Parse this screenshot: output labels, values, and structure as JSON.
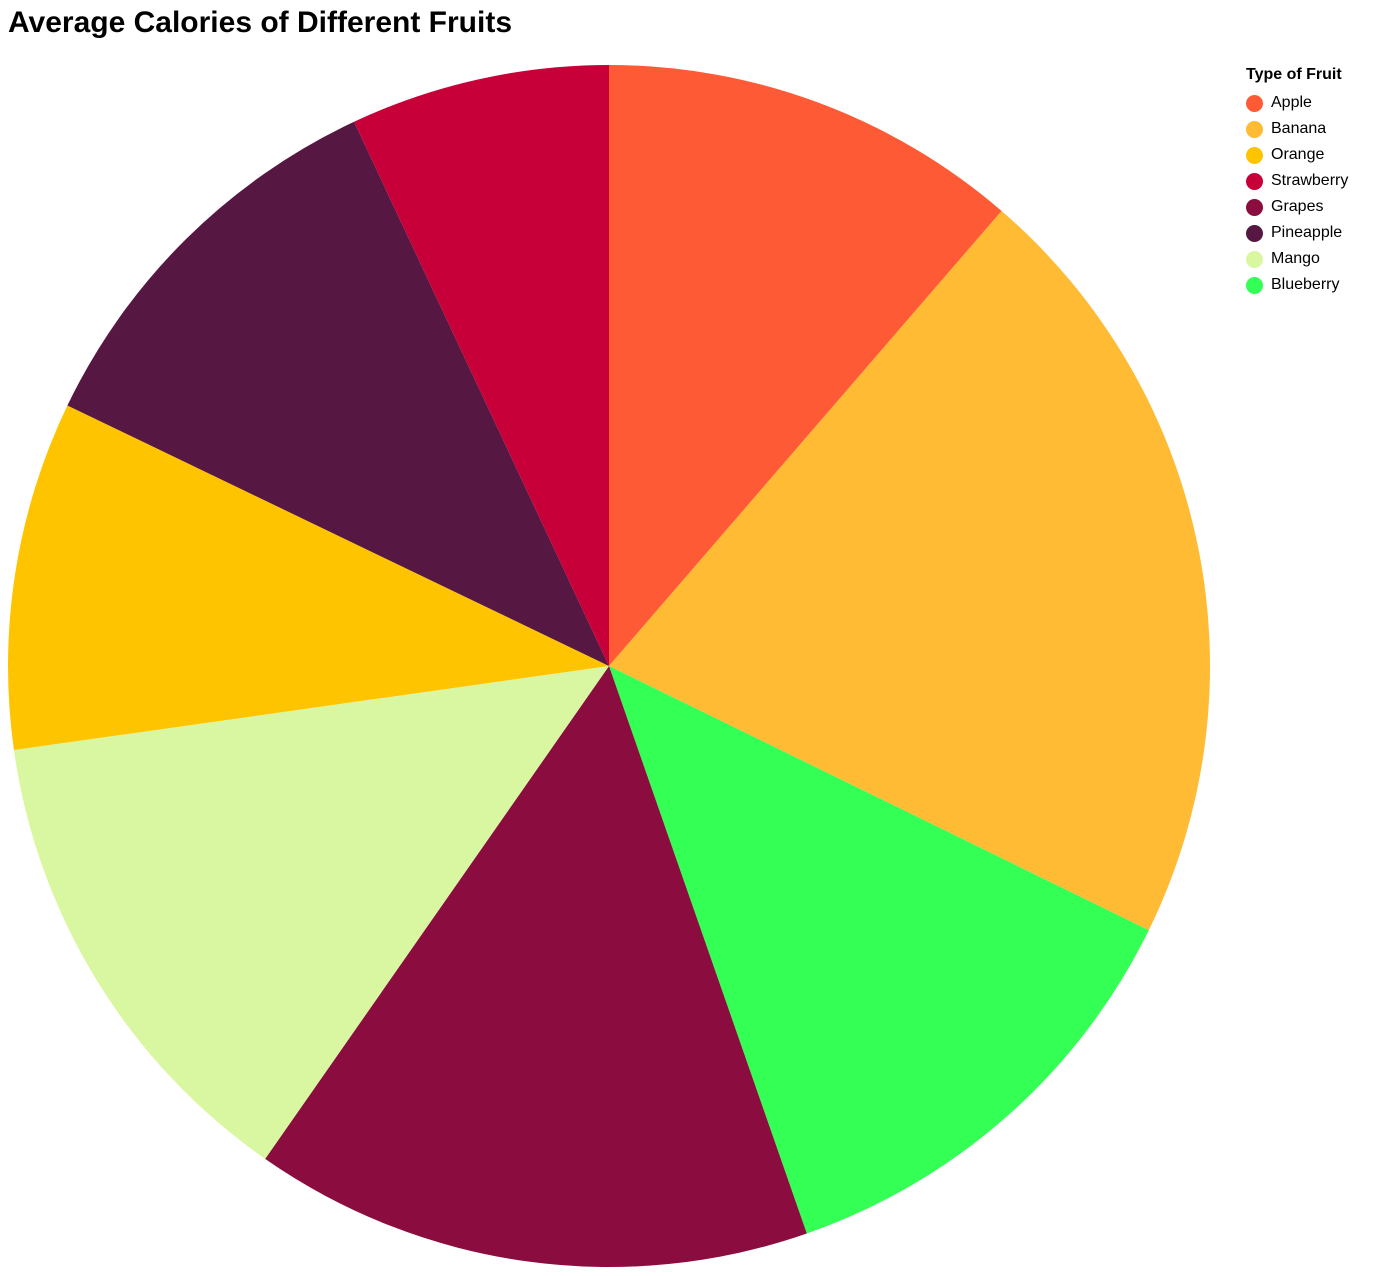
{
  "chart_data": {
    "type": "pie",
    "title": "Average Calories of Different Fruits",
    "legend": {
      "title": "Type of Fruit",
      "placement": "top-right"
    },
    "slices": [
      {
        "label": "Apple",
        "value": 52,
        "color": "#ff5a36"
      },
      {
        "label": "Banana",
        "value": 96,
        "color": "#ffbb33"
      },
      {
        "label": "Blueberry",
        "value": 57,
        "color": "#33ff55"
      },
      {
        "label": "Grapes",
        "value": 69,
        "color": "#8b0c3e"
      },
      {
        "label": "Mango",
        "value": 60,
        "color": "#d9f7a1"
      },
      {
        "label": "Orange",
        "value": 43,
        "color": "#ffc400"
      },
      {
        "label": "Pineapple",
        "value": 50,
        "color": "#561842"
      },
      {
        "label": "Strawberry",
        "value": 32,
        "color": "#c70039"
      }
    ],
    "legend_order": [
      "Apple",
      "Banana",
      "Orange",
      "Strawberry",
      "Grapes",
      "Pineapple",
      "Mango",
      "Blueberry"
    ]
  }
}
